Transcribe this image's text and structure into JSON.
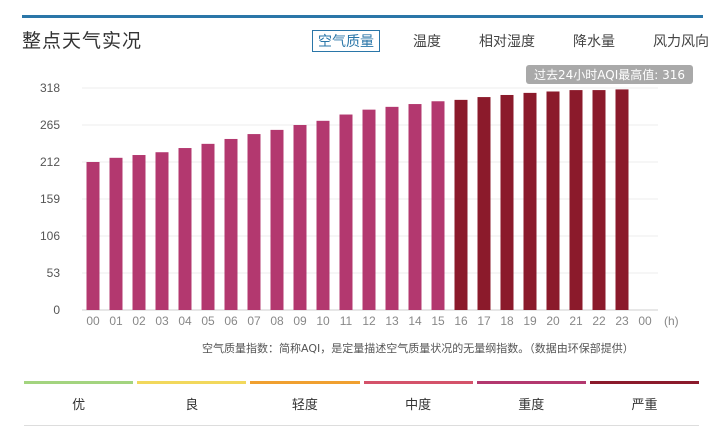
{
  "panel": {
    "title": "整点天气实况",
    "tabs": [
      {
        "label": "空气质量",
        "active": true
      },
      {
        "label": "温度",
        "active": false
      },
      {
        "label": "相对湿度",
        "active": false
      },
      {
        "label": "降水量",
        "active": false
      },
      {
        "label": "风力风向",
        "active": false
      }
    ],
    "max_badge": "过去24小时AQI最高值: 316",
    "note": "空气质量指数：简称AQI，是定量描述空气质量状况的无量纲指数。（数据由环保部提供）"
  },
  "legend": [
    {
      "label": "优",
      "color": "#a3d47f"
    },
    {
      "label": "良",
      "color": "#f2d85c"
    },
    {
      "label": "轻度",
      "color": "#f0a030"
    },
    {
      "label": "中度",
      "color": "#d4526a"
    },
    {
      "label": "重度",
      "color": "#b3386f"
    },
    {
      "label": "严重",
      "color": "#8b1a2b"
    }
  ],
  "chart_data": {
    "type": "bar",
    "xlabel": "(h)",
    "ylabel": "",
    "ylim": [
      0,
      318
    ],
    "yticks": [
      0,
      53,
      106,
      159,
      212,
      265,
      318
    ],
    "categories": [
      "00",
      "01",
      "02",
      "03",
      "04",
      "05",
      "06",
      "07",
      "08",
      "09",
      "10",
      "11",
      "12",
      "13",
      "14",
      "15",
      "16",
      "17",
      "18",
      "19",
      "20",
      "21",
      "22",
      "23",
      "00"
    ],
    "values": [
      212,
      218,
      222,
      226,
      232,
      238,
      245,
      252,
      258,
      265,
      271,
      280,
      287,
      291,
      295,
      299,
      301,
      305,
      308,
      311,
      313,
      315,
      315,
      316,
      null
    ],
    "heavy_threshold": 300,
    "colors": {
      "heavy": "#b3386f",
      "severe": "#8b1a2b"
    },
    "grid": true
  }
}
